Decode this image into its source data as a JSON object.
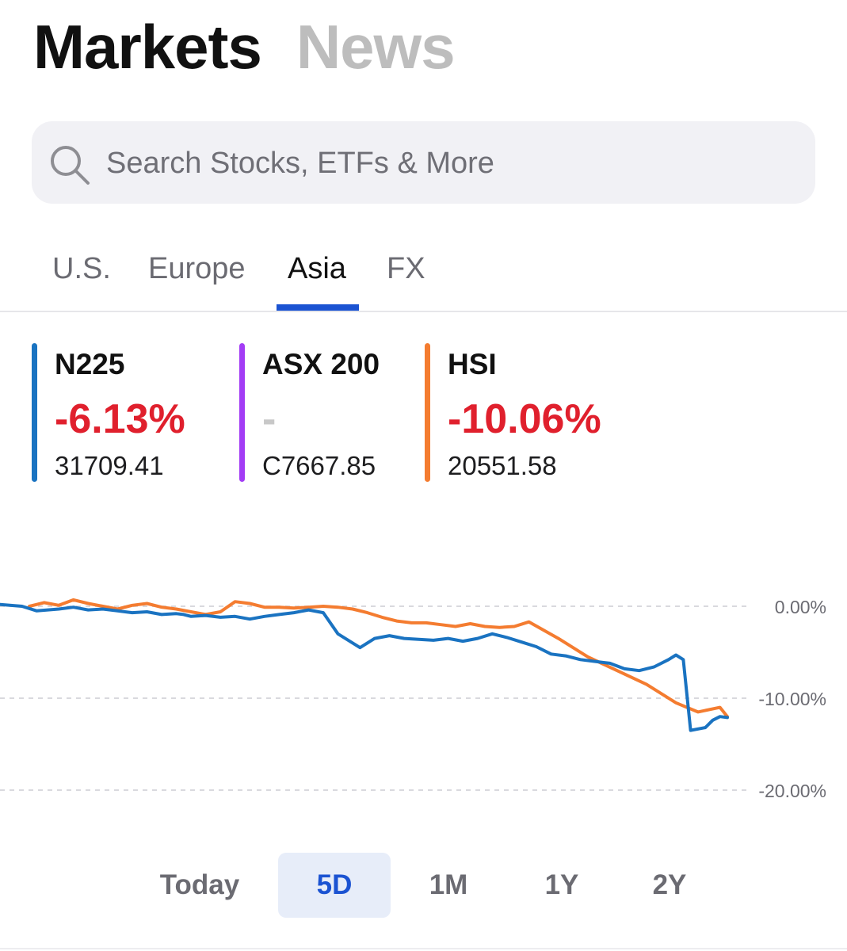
{
  "header": {
    "tabs": [
      {
        "label": "Markets"
      },
      {
        "label": "News"
      }
    ]
  },
  "search": {
    "placeholder": "Search Stocks, ETFs & More",
    "icon": "search-icon"
  },
  "region_tabs": [
    {
      "label": "U.S."
    },
    {
      "label": "Europe"
    },
    {
      "label": "Asia",
      "active": true
    },
    {
      "label": "FX"
    }
  ],
  "quotes": [
    {
      "symbol": "N225",
      "change": "-6.13%",
      "price": "31709.41",
      "color": "#1a73c1",
      "change_color": "#e0202d"
    },
    {
      "symbol": "ASX 200",
      "change": "-",
      "price": "C7667.85",
      "color": "#a33cf5",
      "change_color": "#c8c8c8"
    },
    {
      "symbol": "HSI",
      "change": "-10.06%",
      "price": "20551.58",
      "color": "#f47c30",
      "change_color": "#e0202d"
    }
  ],
  "range_tabs": [
    {
      "label": "Today"
    },
    {
      "label": "5D",
      "active": true
    },
    {
      "label": "1M"
    },
    {
      "label": "1Y"
    },
    {
      "label": "2Y"
    }
  ],
  "chart_data": {
    "type": "line",
    "y_ticks": [
      "0.00%",
      "-10.00%",
      "-20.00%"
    ],
    "ylim": [
      -20,
      0
    ],
    "grid": "dashed",
    "series": [
      {
        "name": "N225",
        "color": "#1a73c1",
        "points": [
          [
            0,
            0.2
          ],
          [
            3,
            0
          ],
          [
            5,
            -0.5
          ],
          [
            8,
            -0.3
          ],
          [
            10,
            -0.1
          ],
          [
            12,
            -0.4
          ],
          [
            14,
            -0.3
          ],
          [
            16,
            -0.5
          ],
          [
            18,
            -0.7
          ],
          [
            20,
            -0.6
          ],
          [
            22,
            -0.9
          ],
          [
            24,
            -0.8
          ],
          [
            25,
            -0.9
          ],
          [
            26,
            -1.1
          ],
          [
            28,
            -1.0
          ],
          [
            30,
            -1.2
          ],
          [
            32,
            -1.1
          ],
          [
            34,
            -1.4
          ],
          [
            36,
            -1.1
          ],
          [
            38,
            -0.9
          ],
          [
            40,
            -0.7
          ],
          [
            42,
            -0.4
          ],
          [
            44,
            -0.7
          ],
          [
            46,
            -3
          ],
          [
            49,
            -4.5
          ],
          [
            51,
            -3.5
          ],
          [
            53,
            -3.2
          ],
          [
            55,
            -3.5
          ],
          [
            57,
            -3.6
          ],
          [
            59,
            -3.7
          ],
          [
            61,
            -3.5
          ],
          [
            63,
            -3.8
          ],
          [
            65,
            -3.5
          ],
          [
            67,
            -3.0
          ],
          [
            69,
            -3.4
          ],
          [
            71,
            -3.9
          ],
          [
            73,
            -4.4
          ],
          [
            75,
            -5.2
          ],
          [
            77,
            -5.4
          ],
          [
            79,
            -5.8
          ],
          [
            81,
            -6.0
          ],
          [
            83,
            -6.2
          ],
          [
            85,
            -6.8
          ],
          [
            87,
            -7.0
          ],
          [
            89,
            -6.6
          ],
          [
            91,
            -5.8
          ],
          [
            92,
            -5.3
          ],
          [
            93,
            -5.8
          ],
          [
            94,
            -13.5
          ],
          [
            96,
            -13.2
          ],
          [
            97,
            -12.4
          ],
          [
            98,
            -12.0
          ],
          [
            99,
            -12.1
          ]
        ]
      },
      {
        "name": "HSI",
        "color": "#f47c30",
        "points": [
          [
            4,
            0
          ],
          [
            6,
            0.4
          ],
          [
            8,
            0.1
          ],
          [
            10,
            0.7
          ],
          [
            12,
            0.3
          ],
          [
            14,
            0.0
          ],
          [
            16,
            -0.3
          ],
          [
            18,
            0.1
          ],
          [
            20,
            0.3
          ],
          [
            22,
            -0.1
          ],
          [
            24,
            -0.3
          ],
          [
            26,
            -0.6
          ],
          [
            28,
            -0.9
          ],
          [
            30,
            -0.6
          ],
          [
            32,
            0.5
          ],
          [
            34,
            0.3
          ],
          [
            36,
            -0.1
          ],
          [
            38,
            -0.1
          ],
          [
            40,
            -0.2
          ],
          [
            42,
            -0.1
          ],
          [
            44,
            0.0
          ],
          [
            46,
            -0.1
          ],
          [
            48,
            -0.3
          ],
          [
            50,
            -0.7
          ],
          [
            52,
            -1.2
          ],
          [
            54,
            -1.6
          ],
          [
            56,
            -1.8
          ],
          [
            58,
            -1.8
          ],
          [
            60,
            -2.0
          ],
          [
            62,
            -2.2
          ],
          [
            64,
            -1.9
          ],
          [
            66,
            -2.2
          ],
          [
            68,
            -2.3
          ],
          [
            70,
            -2.2
          ],
          [
            72,
            -1.7
          ],
          [
            76,
            -3.5
          ],
          [
            80,
            -5.5
          ],
          [
            84,
            -7.0
          ],
          [
            88,
            -8.5
          ],
          [
            92,
            -10.5
          ],
          [
            95,
            -11.5
          ],
          [
            98,
            -11.0
          ],
          [
            99,
            -12.0
          ]
        ]
      }
    ]
  }
}
